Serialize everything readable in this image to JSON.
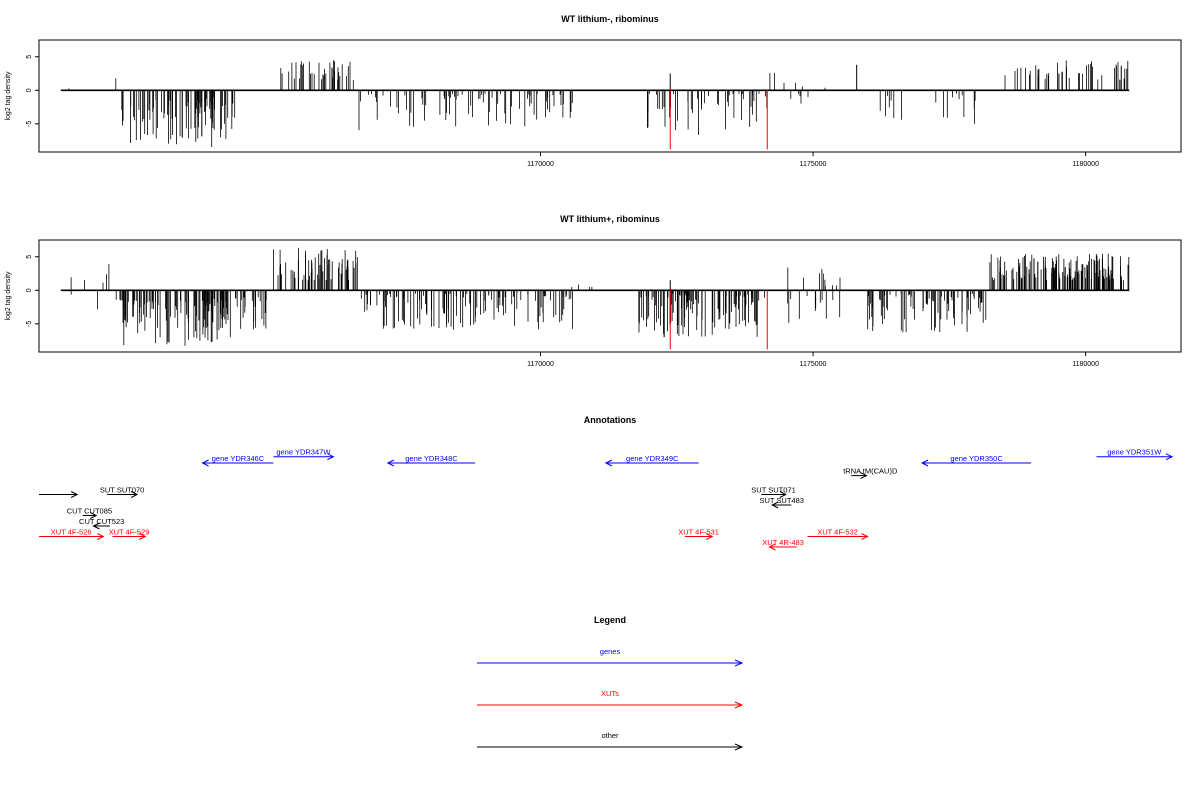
{
  "chart_data": [
    {
      "type": "bar",
      "title": "WT lithium-, ribominus",
      "ylabel": "log2 tag density",
      "xlim": [
        1160800,
        1181750
      ],
      "ylim": [
        -9.2,
        7.5
      ],
      "yticks": [
        -5,
        0,
        5
      ],
      "xticks": [
        1170000,
        1175000,
        1180000
      ],
      "data_range": [
        1161200,
        1180800
      ],
      "red_lines": [
        1172380,
        1174160
      ],
      "red_line_min": -8.8,
      "segments": [
        {
          "start": 1161250,
          "end": 1161400,
          "min": 0,
          "max": 1.2,
          "density": 0.02
        },
        {
          "start": 1162050,
          "end": 1162300,
          "min": 0,
          "max": 1.8,
          "density": 0.03
        },
        {
          "start": 1162300,
          "end": 1164400,
          "min": -8.5,
          "max": -1.5,
          "density": 0.22
        },
        {
          "start": 1163800,
          "end": 1164400,
          "min": -6.0,
          "max": -1.0,
          "density": 0.15
        },
        {
          "start": 1164400,
          "end": 1165300,
          "min": 0,
          "max": 0,
          "density": 0
        },
        {
          "start": 1165200,
          "end": 1166600,
          "min": 1.5,
          "max": 4.5,
          "density": 0.16
        },
        {
          "start": 1166600,
          "end": 1168200,
          "min": -6.0,
          "max": -0.5,
          "density": 0.08
        },
        {
          "start": 1168200,
          "end": 1170600,
          "min": -5.5,
          "max": -0.5,
          "density": 0.14
        },
        {
          "start": 1171800,
          "end": 1173000,
          "min": -7.0,
          "max": -0.5,
          "density": 0.12
        },
        {
          "start": 1172380,
          "end": 1172420,
          "min": 0,
          "max": 2.5,
          "density": 1
        },
        {
          "start": 1173000,
          "end": 1174200,
          "min": -6.0,
          "max": -0.5,
          "density": 0.12
        },
        {
          "start": 1174000,
          "end": 1174500,
          "min": 0,
          "max": 3.0,
          "density": 0.03
        },
        {
          "start": 1174400,
          "end": 1175300,
          "min": 0,
          "max": 1.5,
          "density": 0.03
        },
        {
          "start": 1174400,
          "end": 1175000,
          "min": -4.5,
          "max": -0.5,
          "density": 0.05
        },
        {
          "start": 1175800,
          "end": 1175850,
          "min": 0,
          "max": 3.8,
          "density": 1
        },
        {
          "start": 1176000,
          "end": 1178200,
          "min": -5.0,
          "max": -0.5,
          "density": 0.05
        },
        {
          "start": 1178500,
          "end": 1180800,
          "min": 1.5,
          "max": 4.5,
          "density": 0.12
        }
      ]
    },
    {
      "type": "bar",
      "title": "WT lithium+, ribominus",
      "ylabel": "log2 tag density",
      "xlim": [
        1160800,
        1181750
      ],
      "ylim": [
        -9.2,
        7.5
      ],
      "yticks": [
        -5,
        0,
        5
      ],
      "xticks": [
        1170000,
        1175000,
        1180000
      ],
      "data_range": [
        1161200,
        1180800
      ],
      "red_lines": [
        1172380,
        1174160
      ],
      "red_line_min": -8.8,
      "segments": [
        {
          "start": 1161200,
          "end": 1162000,
          "min": -3.0,
          "max": 2.5,
          "density": 0.04
        },
        {
          "start": 1162000,
          "end": 1162300,
          "min": -2.0,
          "max": 6.0,
          "density": 0.08
        },
        {
          "start": 1162300,
          "end": 1164400,
          "min": -8.5,
          "max": -1.5,
          "density": 0.28
        },
        {
          "start": 1163800,
          "end": 1165000,
          "min": -6.0,
          "max": -1.0,
          "density": 0.2
        },
        {
          "start": 1165100,
          "end": 1166700,
          "min": 1.5,
          "max": 6.5,
          "density": 0.25
        },
        {
          "start": 1166700,
          "end": 1168200,
          "min": -6.0,
          "max": -0.5,
          "density": 0.18
        },
        {
          "start": 1168200,
          "end": 1170600,
          "min": -6.0,
          "max": -0.5,
          "density": 0.2
        },
        {
          "start": 1170500,
          "end": 1171200,
          "min": 0,
          "max": 1.5,
          "density": 0.04
        },
        {
          "start": 1171800,
          "end": 1174200,
          "min": -7.0,
          "max": -0.5,
          "density": 0.28
        },
        {
          "start": 1172380,
          "end": 1172420,
          "min": 0,
          "max": 1.5,
          "density": 1
        },
        {
          "start": 1174400,
          "end": 1175500,
          "min": -5.0,
          "max": 3.5,
          "density": 0.12
        },
        {
          "start": 1176000,
          "end": 1178200,
          "min": -6.5,
          "max": -0.5,
          "density": 0.22
        },
        {
          "start": 1178200,
          "end": 1180800,
          "min": 1.5,
          "max": 5.5,
          "density": 0.35
        }
      ]
    }
  ],
  "annotations": {
    "title": "Annotations",
    "items": [
      {
        "label": "gene YDR346C",
        "x1": 1163800,
        "x2": 1165100,
        "row": 0,
        "dir": "left",
        "color": "blue",
        "label_pos": "center"
      },
      {
        "label": "gene YDR347W",
        "x1": 1165100,
        "x2": 1166200,
        "row": -0.6,
        "dir": "right",
        "color": "blue",
        "label_pos": "center"
      },
      {
        "label": "gene YDR348C",
        "x1": 1167200,
        "x2": 1168800,
        "row": 0,
        "dir": "left",
        "color": "blue",
        "label_pos": "center"
      },
      {
        "label": "gene YDR349C",
        "x1": 1171200,
        "x2": 1172900,
        "row": 0,
        "dir": "left",
        "color": "blue",
        "label_pos": "center"
      },
      {
        "label": "tRNA tM(CAU)D",
        "x1": 1175700,
        "x2": 1175980,
        "row": 1.2,
        "dir": "right",
        "color": "black",
        "label_pos": "left-above"
      },
      {
        "label": "gene YDR350C",
        "x1": 1177000,
        "x2": 1179000,
        "row": 0,
        "dir": "left",
        "color": "blue",
        "label_pos": "center"
      },
      {
        "label": "gene YDR351W",
        "x1": 1180200,
        "x2": 1182500,
        "row": -0.6,
        "dir": "right",
        "color": "blue",
        "label_pos": "center"
      },
      {
        "label": "",
        "x1": 1160800,
        "x2": 1161500,
        "row": 3,
        "dir": "right",
        "color": "black",
        "label_pos": "none"
      },
      {
        "label": "SUT SUT070",
        "x1": 1162050,
        "x2": 1162600,
        "row": 3,
        "dir": "right",
        "color": "black",
        "label_pos": "center"
      },
      {
        "label": "CUT CUT085",
        "x1": 1161600,
        "x2": 1161850,
        "row": 5,
        "dir": "right",
        "color": "black",
        "label_pos": "center"
      },
      {
        "label": "CUT CUT523",
        "x1": 1161800,
        "x2": 1162100,
        "row": 6,
        "dir": "left",
        "color": "black",
        "label_pos": "center"
      },
      {
        "label": "XUT 4F-526",
        "x1": 1160800,
        "x2": 1161980,
        "row": 7,
        "dir": "right",
        "color": "red",
        "label_pos": "center"
      },
      {
        "label": "XUT 4F-529",
        "x1": 1162150,
        "x2": 1162750,
        "row": 7,
        "dir": "right",
        "color": "red",
        "label_pos": "center"
      },
      {
        "label": "SUT SUT071",
        "x1": 1174050,
        "x2": 1174500,
        "row": 3,
        "dir": "right",
        "color": "black",
        "label_pos": "center"
      },
      {
        "label": "SUT SUT483",
        "x1": 1174250,
        "x2": 1174600,
        "row": 4,
        "dir": "left",
        "color": "black",
        "label_pos": "center"
      },
      {
        "label": "XUT 4F-531",
        "x1": 1172650,
        "x2": 1173150,
        "row": 7,
        "dir": "right",
        "color": "red",
        "label_pos": "center"
      },
      {
        "label": "XUT 4F-532",
        "x1": 1174900,
        "x2": 1176000,
        "row": 7,
        "dir": "right",
        "color": "red",
        "label_pos": "center"
      },
      {
        "label": "XUT 4R-483",
        "x1": 1174200,
        "x2": 1174700,
        "row": 8,
        "dir": "left",
        "color": "red",
        "label_pos": "center"
      }
    ]
  },
  "legend": {
    "title": "Legend",
    "items": [
      {
        "label": "genes",
        "color": "blue"
      },
      {
        "label": "XUTs",
        "color": "red"
      },
      {
        "label": "other",
        "color": "black"
      }
    ]
  },
  "colors": {
    "genes": "#0000ff",
    "xuts": "#ff0000",
    "other": "#000000",
    "red_marker": "#ff0000"
  }
}
